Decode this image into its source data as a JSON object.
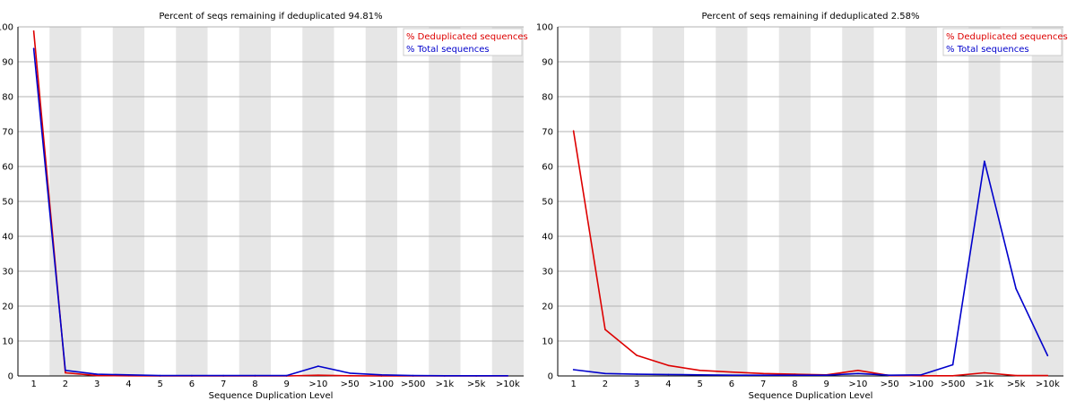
{
  "chart_data": [
    {
      "type": "line",
      "title": "Percent of seqs remaining if deduplicated 94.81%",
      "xlabel": "Sequence Duplication Level",
      "ylabel": "",
      "ylim": [
        0,
        100
      ],
      "yticks": [
        0,
        10,
        20,
        30,
        40,
        50,
        60,
        70,
        80,
        90,
        100
      ],
      "categories": [
        "1",
        "2",
        "3",
        "4",
        "5",
        "6",
        "7",
        "8",
        "9",
        ">10",
        ">50",
        ">100",
        ">500",
        ">1k",
        ">5k",
        ">10k"
      ],
      "legend_position": "top-right",
      "background": "alternating grey/white vertical bands",
      "grid": true,
      "series": [
        {
          "name": "% Deduplicated sequences",
          "color": "#dd0000",
          "values": [
            98.8,
            0.9,
            0.1,
            0.05,
            0.02,
            0.01,
            0.01,
            0.01,
            0.01,
            0.2,
            0.05,
            0.01,
            0,
            0,
            0,
            0
          ]
        },
        {
          "name": "% Total sequences",
          "color": "#0000cc",
          "values": [
            93.8,
            1.6,
            0.5,
            0.3,
            0.1,
            0.1,
            0.1,
            0.1,
            0.1,
            2.8,
            0.8,
            0.3,
            0.1,
            0.05,
            0.05,
            0.05
          ]
        }
      ]
    },
    {
      "type": "line",
      "title": "Percent of seqs remaining if deduplicated 2.58%",
      "xlabel": "Sequence Duplication Level",
      "ylabel": "",
      "ylim": [
        0,
        100
      ],
      "yticks": [
        0,
        10,
        20,
        30,
        40,
        50,
        60,
        70,
        80,
        90,
        100
      ],
      "categories": [
        "1",
        "2",
        "3",
        "4",
        "5",
        "6",
        "7",
        "8",
        "9",
        ">10",
        ">50",
        ">100",
        ">500",
        ">1k",
        ">5k",
        ">10k"
      ],
      "legend_position": "top-right",
      "background": "alternating grey/white vertical bands",
      "grid": true,
      "series": [
        {
          "name": "% Deduplicated sequences",
          "color": "#dd0000",
          "values": [
            70.2,
            13.3,
            5.9,
            3.0,
            1.6,
            1.1,
            0.7,
            0.5,
            0.3,
            1.6,
            0.1,
            0.05,
            0.05,
            0.9,
            0.1,
            0.1
          ]
        },
        {
          "name": "% Total sequences",
          "color": "#0000cc",
          "values": [
            1.8,
            0.7,
            0.5,
            0.4,
            0.3,
            0.2,
            0.2,
            0.2,
            0.2,
            0.7,
            0.2,
            0.3,
            3.2,
            61.5,
            25.0,
            5.8
          ]
        }
      ]
    }
  ]
}
